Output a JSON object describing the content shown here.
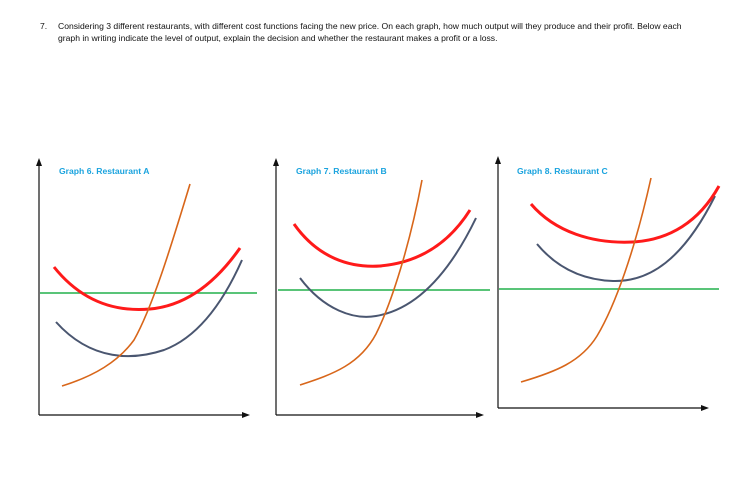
{
  "question": {
    "number": "7.",
    "text": "Considering 3 different restaurants, with different cost functions facing the new price. On each graph, how much output will they produce and their profit. Below each graph in writing indicate the level of output, explain the decision and whether the restaurant makes a profit or a loss."
  },
  "colors": {
    "axis": "#111111",
    "price_line": "#22b14c",
    "atc_curve": "#ff1a1a",
    "avc_curve": "#4a5670",
    "mc_curve": "#d8661a",
    "title": "#1aa3de"
  },
  "graphs": [
    {
      "title": "Graph 6. Restaurant A"
    },
    {
      "title": "Graph 7. Restaurant B"
    },
    {
      "title": "Graph 8. Restaurant C"
    }
  ]
}
